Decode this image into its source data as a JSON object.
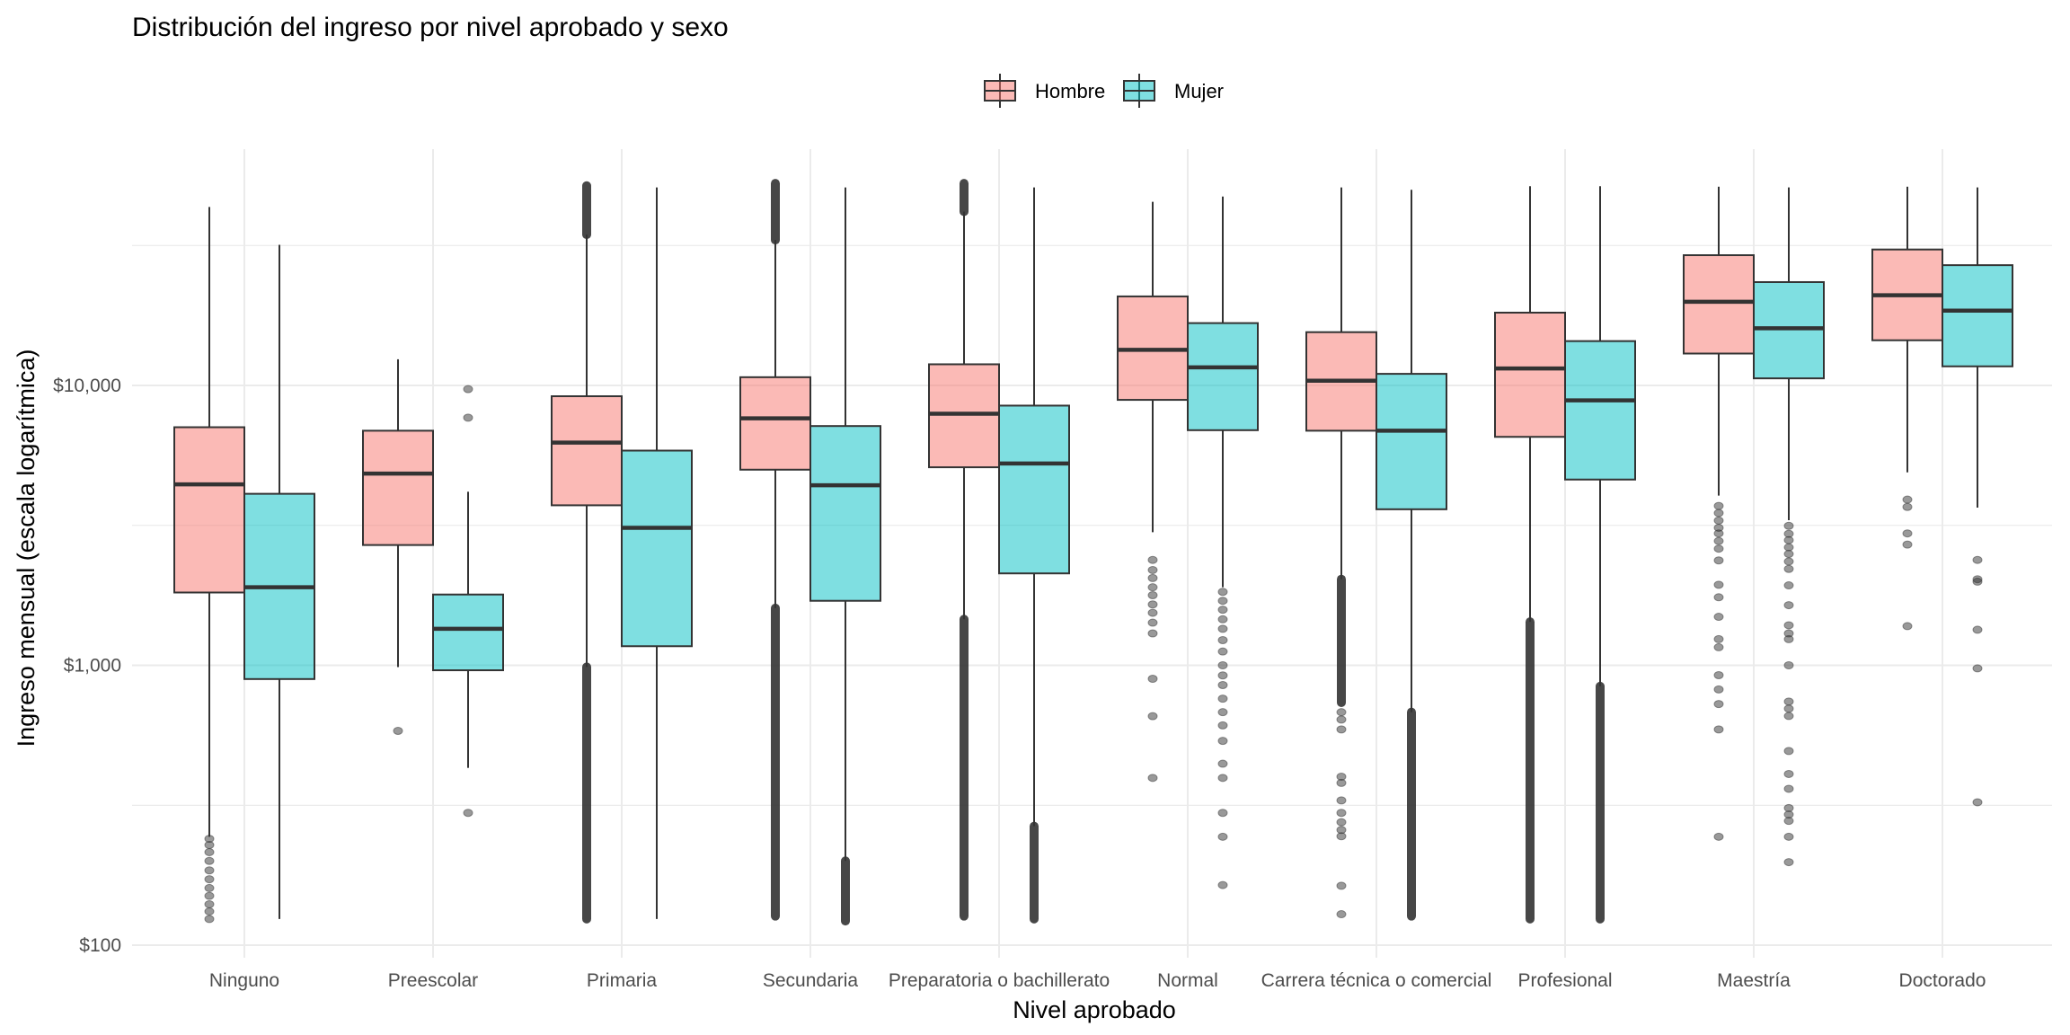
{
  "chart_data": {
    "type": "boxplot",
    "title": "Distribución del ingreso por nivel aprobado y sexo",
    "xlabel": "Nivel aprobado",
    "ylabel": "Ingreso mensual (escala logarítmica)",
    "yscale": "log10",
    "ylim": [
      100,
      70000
    ],
    "y_ticks": [
      {
        "value": 100,
        "label": "$100"
      },
      {
        "value": 1000,
        "label": "$1,000"
      },
      {
        "value": 10000,
        "label": "$10,000"
      }
    ],
    "y_minor_gridlines": [
      316,
      3162,
      31623
    ],
    "grid": true,
    "legend": {
      "position": "top",
      "entries": [
        {
          "name": "Hombre",
          "color": "#F8766D"
        },
        {
          "name": "Mujer",
          "color": "#00BFC4"
        }
      ]
    },
    "fill_alpha": 0.5,
    "categories": [
      "Ninguno",
      "Preescolar",
      "Primaria",
      "Secundaria",
      "Preparatoria o bachillerato",
      "Normal",
      "Carrera técnica o comercial",
      "Profesional",
      "Maestría",
      "Doctorado"
    ],
    "series": [
      {
        "name": "Hombre",
        "boxes": [
          {
            "whisker_low": 244,
            "q1": 1820,
            "median": 4430,
            "q3": 7090,
            "whisker_high": 43400,
            "outliers": [
              124,
              132,
              140,
              150,
              160,
              172,
              185,
              200,
              215,
              228,
              240
            ],
            "dense_outliers": null
          },
          {
            "whisker_low": 985,
            "q1": 2690,
            "median": 4840,
            "q3": 6890,
            "whisker_high": 12400,
            "outliers": [
              583
            ],
            "dense_outliers": null
          },
          {
            "whisker_low": 986,
            "q1": 3730,
            "median": 6250,
            "q3": 9150,
            "whisker_high": 34600,
            "outliers": [],
            "dense_outliers": {
              "low": [
                124,
                986
              ],
              "high": [
                34600,
                51700
              ]
            }
          },
          {
            "whisker_low": 1600,
            "q1": 5000,
            "median": 7630,
            "q3": 10700,
            "whisker_high": 33100,
            "outliers": [],
            "dense_outliers": {
              "low": [
                127,
                1600
              ],
              "high": [
                33100,
                52700
              ]
            }
          },
          {
            "whisker_low": 1460,
            "q1": 5100,
            "median": 7920,
            "q3": 11900,
            "whisker_high": 41800,
            "outliers": [],
            "dense_outliers": {
              "low": [
                127,
                1460
              ],
              "high": [
                41800,
                52700
              ]
            }
          },
          {
            "whisker_low": 2990,
            "q1": 8880,
            "median": 13400,
            "q3": 20800,
            "whisker_high": 45300,
            "outliers": [
              2380,
              2190,
              2050,
              1900,
              1780,
              1650,
              1540,
              1420,
              1300,
              895,
              658,
              396
            ],
            "dense_outliers": null
          },
          {
            "whisker_low": 2030,
            "q1": 6890,
            "median": 10400,
            "q3": 15500,
            "whisker_high": 51000,
            "outliers": [
              680,
              640,
              590,
              400,
              380,
              329,
              297,
              275,
              258,
              245,
              163,
              129
            ],
            "dense_outliers": {
              "low": [
                736,
                2030
              ],
              "high": null
            }
          },
          {
            "whisker_low": 1430,
            "q1": 6550,
            "median": 11500,
            "q3": 18200,
            "whisker_high": 51500,
            "outliers": [],
            "dense_outliers": {
              "low": [
                124,
                1430
              ],
              "high": null
            }
          },
          {
            "whisker_low": 4040,
            "q1": 13000,
            "median": 19900,
            "q3": 29200,
            "whisker_high": 51300,
            "outliers": [
              3710,
              3500,
              3290,
              3100,
              2960,
              2780,
              2610,
              2370,
              1940,
              1750,
              1490,
              1240,
              1160,
              922,
              820,
              727,
              590,
              244
            ],
            "dense_outliers": null
          },
          {
            "whisker_low": 4890,
            "q1": 14500,
            "median": 21000,
            "q3": 30600,
            "whisker_high": 51300,
            "outliers": [
              3910,
              3680,
              2960,
              2700,
              1380
            ],
            "dense_outliers": null
          }
        ]
      },
      {
        "name": "Mujer",
        "boxes": [
          {
            "whisker_low": 124,
            "q1": 893,
            "median": 1900,
            "q3": 4100,
            "whisker_high": 31800,
            "outliers": [],
            "dense_outliers": null
          },
          {
            "whisker_low": 430,
            "q1": 960,
            "median": 1350,
            "q3": 1790,
            "whisker_high": 4170,
            "outliers": [
              9700,
              7670,
              297
            ],
            "dense_outliers": null
          },
          {
            "whisker_low": 124,
            "q1": 1170,
            "median": 3100,
            "q3": 5850,
            "whisker_high": 51000,
            "outliers": [],
            "dense_outliers": null
          },
          {
            "whisker_low": 200,
            "q1": 1700,
            "median": 4400,
            "q3": 7160,
            "whisker_high": 51000,
            "outliers": [],
            "dense_outliers": {
              "low": [
                122,
                200
              ],
              "high": null
            }
          },
          {
            "whisker_low": 266,
            "q1": 2130,
            "median": 5260,
            "q3": 8470,
            "whisker_high": 51000,
            "outliers": [],
            "dense_outliers": {
              "low": [
                124,
                266
              ],
              "high": null
            }
          },
          {
            "whisker_low": 1900,
            "q1": 6920,
            "median": 11600,
            "q3": 16700,
            "whisker_high": 47300,
            "outliers": [
              1830,
              1700,
              1580,
              1460,
              1350,
              1230,
              1120,
              1000,
              920,
              850,
              760,
              680,
              610,
              537,
              445,
              396,
              297,
              244,
              164
            ],
            "dense_outliers": null
          },
          {
            "whisker_low": 680,
            "q1": 3610,
            "median": 6890,
            "q3": 11000,
            "whisker_high": 50000,
            "outliers": [],
            "dense_outliers": {
              "low": [
                127,
                680
              ],
              "high": null
            }
          },
          {
            "whisker_low": 841,
            "q1": 4610,
            "median": 8840,
            "q3": 14400,
            "whisker_high": 51500,
            "outliers": [],
            "dense_outliers": {
              "low": [
                124,
                841
              ],
              "high": null
            }
          },
          {
            "whisker_low": 3300,
            "q1": 10600,
            "median": 16000,
            "q3": 23400,
            "whisker_high": 51000,
            "outliers": [
              3150,
              2950,
              2800,
              2640,
              2500,
              2350,
              2210,
              1930,
              1640,
              1390,
              1300,
              1240,
              1000,
              742,
              700,
              659,
              494,
              409,
              362,
              309,
              293,
              278,
              244,
              198
            ],
            "dense_outliers": null
          },
          {
            "whisker_low": 3660,
            "q1": 11700,
            "median": 18500,
            "q3": 26900,
            "whisker_high": 51000,
            "outliers": [
              2380,
              2030,
              1990,
              1340,
              975,
              324
            ],
            "dense_outliers": null
          }
        ]
      }
    ]
  }
}
